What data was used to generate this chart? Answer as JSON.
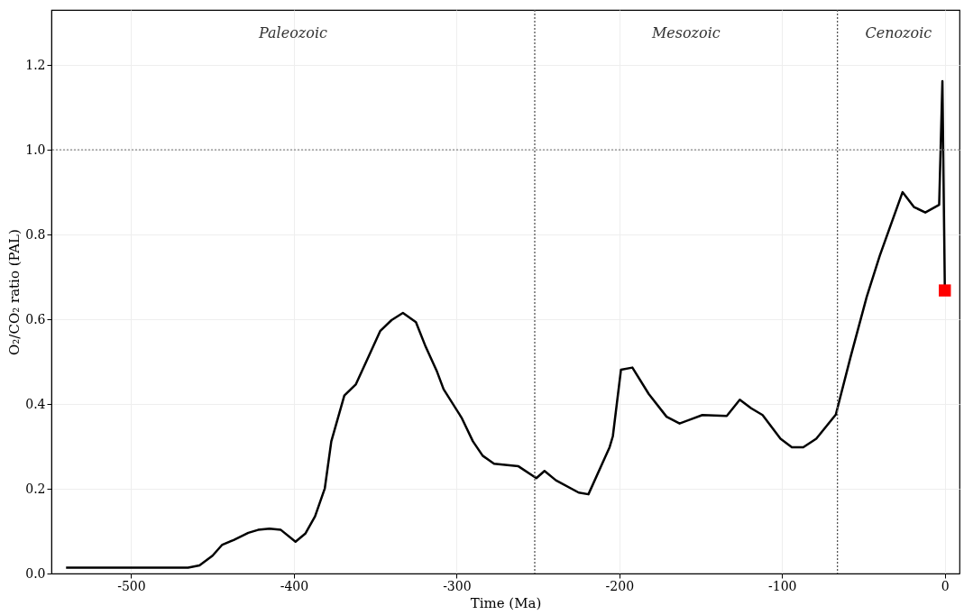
{
  "chart_data": {
    "type": "line",
    "xlabel": "Time (Ma)",
    "ylabel": "O₂/CO₂ ratio (PAL)",
    "xlim": [
      -549,
      9
    ],
    "ylim": [
      0,
      1.33
    ],
    "xticks": [
      -500,
      -400,
      -300,
      -200,
      -100,
      0
    ],
    "yticks": [
      {
        "value": 0,
        "label": "0.0"
      },
      {
        "value": 0.2,
        "label": "0.2"
      },
      {
        "value": 0.4,
        "label": "0.4"
      },
      {
        "value": 0.6,
        "label": "0.6"
      },
      {
        "value": 0.8,
        "label": "0.8"
      },
      {
        "value": 1,
        "label": "1.0"
      },
      {
        "value": 1.2,
        "label": "1.2"
      }
    ],
    "grid": true,
    "series": [
      {
        "color": "#000000",
        "marker": "none",
        "line_style": "solid",
        "x": [
          -540,
          -465,
          -458,
          -450,
          -444,
          -437,
          -428,
          -422,
          -415,
          -408,
          -399,
          -393,
          -387,
          -381,
          -377,
          -369,
          -362,
          -354,
          -347,
          -340,
          -333,
          -325,
          -319,
          -312,
          -308,
          -297,
          -290,
          -284,
          -277,
          -262,
          -251,
          -246,
          -239,
          -225,
          -219,
          -206,
          -204,
          -199,
          -192,
          -182,
          -171,
          -163,
          -149,
          -134,
          -126,
          -119,
          -112,
          -101,
          -94,
          -87,
          -79,
          -67,
          -58,
          -48,
          -40,
          -26,
          -19,
          -12,
          -3.5,
          -1.5,
          0
        ],
        "values": [
          0.014,
          0.014,
          0.019,
          0.042,
          0.068,
          0.079,
          0.096,
          0.103,
          0.106,
          0.103,
          0.075,
          0.094,
          0.135,
          0.201,
          0.312,
          0.42,
          0.446,
          0.513,
          0.572,
          0.598,
          0.615,
          0.593,
          0.535,
          0.476,
          0.435,
          0.368,
          0.312,
          0.278,
          0.259,
          0.253,
          0.225,
          0.242,
          0.22,
          0.191,
          0.187,
          0.298,
          0.324,
          0.481,
          0.486,
          0.424,
          0.37,
          0.354,
          0.374,
          0.372,
          0.41,
          0.39,
          0.374,
          0.318,
          0.298,
          0.298,
          0.318,
          0.375,
          0.51,
          0.653,
          0.75,
          0.9,
          0.865,
          0.852,
          0.87,
          1.162,
          0.668
        ]
      },
      {
        "type": "scatter",
        "color": "#ff0000",
        "marker": "square",
        "x": [
          0
        ],
        "values": [
          0.668
        ]
      }
    ],
    "ref_lines": [
      {
        "axis": "x",
        "value": -252,
        "color": "#555555",
        "line_style": "dotted"
      },
      {
        "axis": "x",
        "value": -66,
        "color": "#555555",
        "line_style": "dotted"
      },
      {
        "axis": "y",
        "value": 1.0,
        "color": "#888888",
        "line_style": "dotted"
      }
    ],
    "annotations": [
      "Paleozoic",
      "Mesozoic",
      "Cenozoic"
    ]
  }
}
